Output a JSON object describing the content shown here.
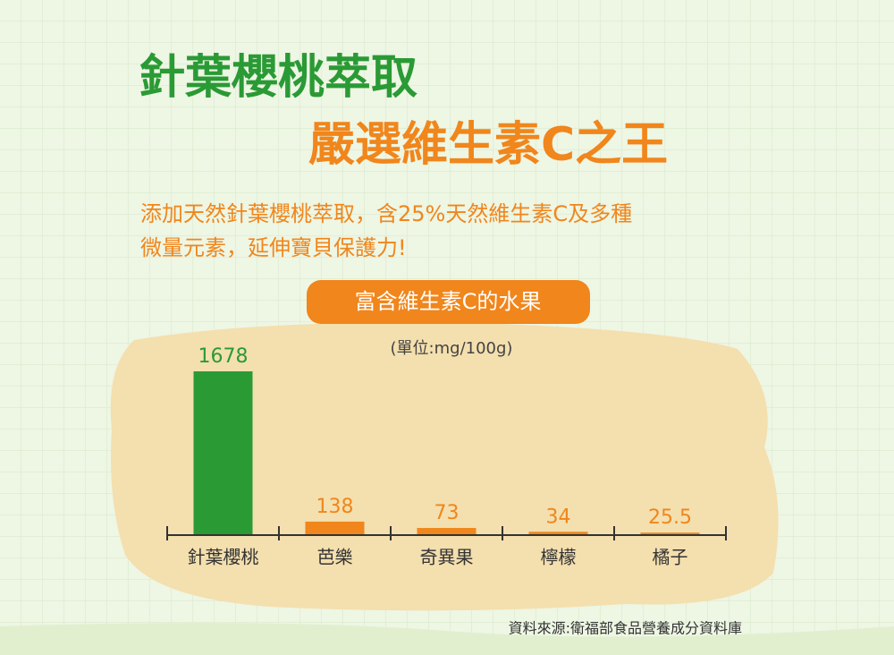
{
  "header": {
    "title_line1": "針葉櫻桃萃取",
    "title_line2": "嚴選維生素C之王",
    "description": [
      "添加天然針葉櫻桃萃取，含25%天然維生素C及多種",
      "微量元素，延伸寶貝保護力!"
    ]
  },
  "chart_data": {
    "type": "bar",
    "title": "富含維生素C的水果",
    "subtitle": "(單位:mg/100g)",
    "categories": [
      "針葉櫻桃",
      "芭樂",
      "奇異果",
      "檸檬",
      "橘子"
    ],
    "values": [
      1678,
      138,
      73,
      34,
      25.5
    ],
    "colors": [
      "#2a9a35",
      "#f0861c",
      "#f0861c",
      "#f0861c",
      "#f0861c"
    ],
    "source": "資料來源:衛福部食品營養成分資料庫"
  }
}
